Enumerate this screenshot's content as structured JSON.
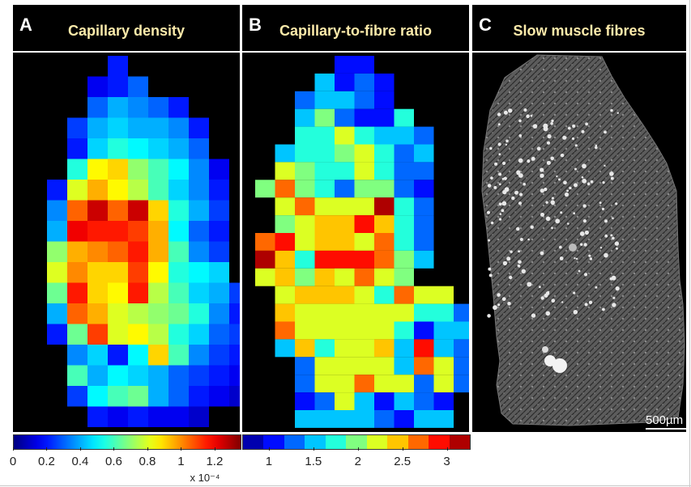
{
  "panels": [
    {
      "letter": "A",
      "title": "Capillary density"
    },
    {
      "letter": "B",
      "title": "Capillary-to-fibre ratio"
    },
    {
      "letter": "C",
      "title": "Slow muscle fibres"
    }
  ],
  "colorbar_a": {
    "ticks": [
      {
        "label": "0",
        "value": 0
      },
      {
        "label": "0.2",
        "value": 0.2
      },
      {
        "label": "0.4",
        "value": 0.4
      },
      {
        "label": "0.6",
        "value": 0.6
      },
      {
        "label": "0.8",
        "value": 0.8
      },
      {
        "label": "1",
        "value": 1.0
      },
      {
        "label": "1.2",
        "value": 1.2
      }
    ],
    "range": [
      0,
      1.35
    ],
    "exponent_label": "x 10⁻⁴"
  },
  "colorbar_b": {
    "ticks": [
      {
        "label": "1",
        "value": 1.0
      },
      {
        "label": "1.5",
        "value": 1.5
      },
      {
        "label": "2",
        "value": 2.0
      },
      {
        "label": "2.5",
        "value": 2.5
      },
      {
        "label": "3",
        "value": 3.0
      }
    ],
    "range": [
      0.7,
      3.25
    ],
    "levels": 11
  },
  "scale_bar_label": "500µm",
  "chart_data": [
    {
      "type": "heatmap",
      "title": "Capillary density",
      "value_range": [
        0,
        1.35
      ],
      "grid": [
        [
          null,
          null,
          null,
          null,
          0.2,
          null,
          null,
          null,
          null,
          null,
          null
        ],
        [
          null,
          null,
          null,
          0.15,
          0.2,
          0.3,
          null,
          null,
          null,
          null,
          null
        ],
        [
          null,
          null,
          null,
          0.3,
          0.4,
          0.35,
          0.3,
          0.2,
          null,
          null,
          null
        ],
        [
          null,
          null,
          0.25,
          0.4,
          0.45,
          0.4,
          0.4,
          0.35,
          0.2,
          null,
          null
        ],
        [
          null,
          null,
          0.2,
          0.45,
          0.55,
          0.5,
          0.45,
          0.4,
          0.3,
          null,
          null
        ],
        [
          null,
          null,
          0.55,
          0.85,
          0.9,
          0.7,
          0.6,
          0.5,
          0.35,
          0.15,
          null
        ],
        [
          null,
          0.2,
          0.8,
          0.95,
          0.85,
          0.75,
          0.6,
          0.45,
          0.35,
          0.2,
          null
        ],
        [
          null,
          0.35,
          1.05,
          1.25,
          1.05,
          1.25,
          0.9,
          0.55,
          0.4,
          0.25,
          null
        ],
        [
          null,
          0.4,
          1.2,
          1.15,
          1.15,
          1.1,
          0.95,
          0.5,
          0.3,
          0.2,
          null
        ],
        [
          null,
          0.7,
          0.95,
          1.0,
          1.05,
          1.15,
          0.95,
          0.6,
          0.35,
          0.25,
          null
        ],
        [
          null,
          0.8,
          1.0,
          0.9,
          0.9,
          1.1,
          0.85,
          0.55,
          0.5,
          0.45,
          null
        ],
        [
          null,
          0.65,
          1.15,
          0.9,
          0.85,
          1.15,
          0.75,
          0.6,
          0.45,
          0.4,
          0.25
        ],
        [
          null,
          0.4,
          1.05,
          0.95,
          0.8,
          0.75,
          0.7,
          0.65,
          0.55,
          0.35,
          0.2
        ],
        [
          null,
          0.2,
          0.65,
          1.1,
          0.8,
          0.85,
          0.75,
          0.55,
          0.45,
          0.3,
          0.25
        ],
        [
          null,
          null,
          0.35,
          0.45,
          0.2,
          0.5,
          0.9,
          0.6,
          0.35,
          0.25,
          0.2
        ],
        [
          null,
          null,
          0.6,
          0.4,
          0.5,
          0.45,
          0.4,
          0.3,
          0.25,
          0.2,
          0.15
        ],
        [
          null,
          null,
          0.25,
          0.5,
          0.6,
          0.65,
          0.4,
          0.3,
          0.2,
          0.15,
          0.1
        ],
        [
          null,
          null,
          null,
          0.2,
          0.15,
          0.2,
          0.15,
          0.15,
          0.1,
          null,
          null
        ]
      ]
    },
    {
      "type": "heatmap",
      "title": "Capillary-to-fibre ratio",
      "value_range": [
        0.7,
        3.25
      ],
      "grid": [
        [
          null,
          null,
          null,
          null,
          1.0,
          1.0,
          null,
          null,
          null,
          null,
          null
        ],
        [
          null,
          null,
          null,
          1.5,
          1.0,
          1.2,
          1.0,
          null,
          null,
          null,
          null
        ],
        [
          null,
          null,
          1.3,
          1.5,
          1.5,
          1.3,
          1.0,
          null,
          null,
          null,
          null
        ],
        [
          null,
          null,
          1.5,
          2.0,
          1.3,
          1.0,
          1.0,
          1.8,
          null,
          null,
          null
        ],
        [
          null,
          null,
          1.7,
          1.7,
          2.3,
          1.7,
          1.5,
          1.5,
          1.2,
          null,
          null
        ],
        [
          null,
          1.5,
          1.8,
          1.8,
          2.0,
          2.2,
          1.8,
          1.3,
          1.5,
          null,
          null
        ],
        [
          null,
          2.1,
          2.0,
          1.8,
          1.8,
          2.2,
          1.8,
          1.3,
          1.2,
          null,
          null
        ],
        [
          1.9,
          2.7,
          2.0,
          1.8,
          1.3,
          2.0,
          2.0,
          1.2,
          1.0,
          null,
          null
        ],
        [
          null,
          2.3,
          2.7,
          2.2,
          2.1,
          2.2,
          3.2,
          1.8,
          1.2,
          null,
          null
        ],
        [
          null,
          2.0,
          2.2,
          2.5,
          2.5,
          3.0,
          2.4,
          1.8,
          1.2,
          null,
          null
        ],
        [
          2.7,
          2.9,
          2.3,
          2.4,
          2.4,
          2.3,
          2.7,
          1.8,
          1.2,
          null,
          null
        ],
        [
          3.2,
          2.4,
          1.8,
          3.0,
          3.0,
          3.0,
          2.7,
          1.9,
          1.5,
          null,
          null
        ],
        [
          2.2,
          2.5,
          1.9,
          2.5,
          2.3,
          2.7,
          2.1,
          2.0,
          null,
          null,
          null
        ],
        [
          null,
          2.3,
          2.5,
          2.4,
          2.4,
          2.3,
          1.8,
          2.7,
          2.3,
          2.2,
          null
        ],
        [
          null,
          2.4,
          2.2,
          2.2,
          2.2,
          2.2,
          2.3,
          2.2,
          1.8,
          1.8,
          1.2
        ],
        [
          null,
          2.6,
          2.2,
          2.3,
          2.3,
          2.2,
          2.2,
          1.8,
          1.0,
          1.5,
          1.5
        ],
        [
          null,
          1.5,
          2.4,
          1.8,
          2.2,
          2.2,
          2.5,
          1.5,
          2.8,
          1.5,
          1.2
        ],
        [
          null,
          null,
          1.2,
          2.2,
          2.2,
          2.2,
          2.1,
          1.5,
          2.6,
          2.2,
          1.2
        ],
        [
          null,
          null,
          1.2,
          2.2,
          2.2,
          2.7,
          2.2,
          2.2,
          1.2,
          2.1,
          1.2
        ],
        [
          null,
          null,
          1.0,
          1.2,
          2.2,
          1.5,
          1.0,
          1.5,
          1.2,
          1.0,
          null
        ],
        [
          null,
          null,
          1.5,
          1.5,
          1.5,
          1.5,
          1.2,
          1.0,
          1.5,
          1.5,
          null
        ]
      ]
    }
  ]
}
